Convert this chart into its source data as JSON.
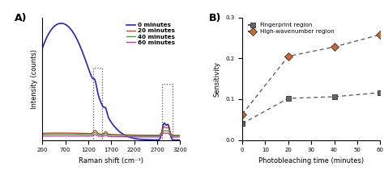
{
  "panel_A": {
    "title": "A)",
    "xlabel": "Raman shift (cm⁻¹)",
    "ylabel": "Intensity (counts)",
    "xmin": 200,
    "xmax": 3200,
    "lines": {
      "0min": {
        "color": "#2222cc",
        "label": "0 minutes"
      },
      "20min": {
        "color": "#dd3311",
        "label": "20 minutes"
      },
      "40min": {
        "color": "#22aa22",
        "label": "40 minutes"
      },
      "60min": {
        "color": "#cc22cc",
        "label": "60 minutes"
      }
    }
  },
  "panel_B": {
    "title": "B)",
    "xlabel": "Photobleaching time (minutes)",
    "ylabel": "Sensitivity",
    "ylim": [
      0,
      0.3
    ],
    "xlim": [
      0,
      60
    ],
    "fingerprint": {
      "x": [
        0,
        20,
        40,
        60
      ],
      "y": [
        0.04,
        0.102,
        0.106,
        0.116
      ],
      "color": "#666666",
      "label": "Fingerprint region",
      "marker": "s"
    },
    "highwave": {
      "x": [
        0,
        20,
        40,
        60
      ],
      "y": [
        0.063,
        0.205,
        0.228,
        0.258
      ],
      "color": "#cc6633",
      "label": "High-wavenumber region",
      "marker": "D"
    }
  }
}
